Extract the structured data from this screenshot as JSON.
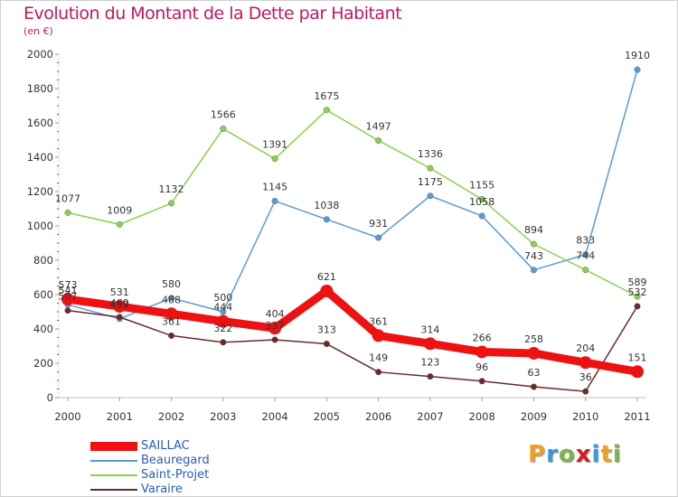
{
  "title": "Evolution du Montant de la Dette par Habitant",
  "subtitle": "(en €)",
  "logo": {
    "text": "Proxiti",
    "letters": [
      "P",
      "r",
      "o",
      "x",
      "i",
      "t",
      "i"
    ],
    "colors": [
      "#f0a020",
      "#3a9ad9",
      "#7ab648",
      "#d02020",
      "#3a9ad9",
      "#f0a020",
      "#7ab648"
    ]
  },
  "chart_data": {
    "type": "line",
    "x": [
      "2000",
      "2001",
      "2002",
      "2003",
      "2004",
      "2005",
      "2006",
      "2007",
      "2008",
      "2009",
      "2010",
      "2011"
    ],
    "ylim": [
      0,
      2000
    ],
    "yticks": [
      "0",
      "200",
      "400",
      "600",
      "800",
      "1000",
      "1200",
      "1400",
      "1600",
      "1800",
      "2000"
    ],
    "grid": false,
    "legend_position": "bottom-left",
    "series": [
      {
        "name": "SAILLAC",
        "color": "#ee1111",
        "width": 9,
        "labels": true,
        "values": [
          573,
          531,
          488,
          444,
          404,
          621,
          361,
          314,
          266,
          258,
          204,
          151
        ]
      },
      {
        "name": "Beauregard",
        "color": "#5a9bd4",
        "width": 1.5,
        "labels": true,
        "values": [
          541,
          459,
          580,
          500,
          1145,
          1038,
          931,
          1175,
          1058,
          743,
          833,
          1910
        ]
      },
      {
        "name": "Saint-Projet",
        "color": "#8cd050",
        "width": 1.5,
        "labels": true,
        "values": [
          1077,
          1009,
          1132,
          1566,
          1391,
          1675,
          1497,
          1336,
          1155,
          894,
          744,
          589
        ]
      },
      {
        "name": "Varaire",
        "color": "#6b2a2a",
        "width": 1.5,
        "labels": true,
        "values": [
          507,
          469,
          361,
          322,
          337,
          313,
          149,
          123,
          96,
          63,
          36,
          532
        ]
      }
    ]
  }
}
